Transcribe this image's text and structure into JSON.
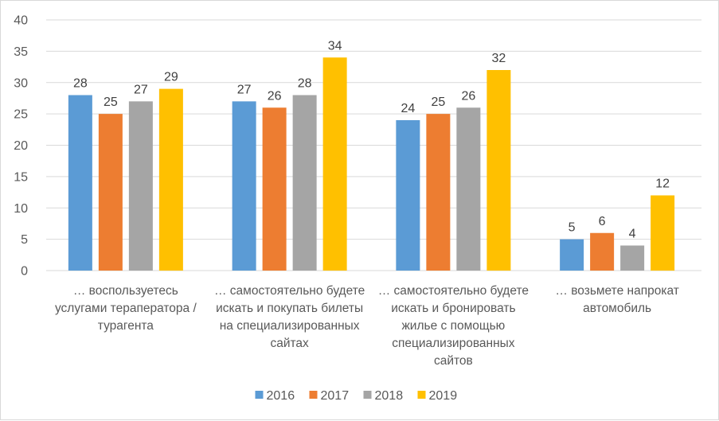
{
  "chart_data": {
    "type": "bar",
    "title": "",
    "xlabel": "",
    "ylabel": "",
    "ylim": [
      0,
      40
    ],
    "yticks": [
      0,
      5,
      10,
      15,
      20,
      25,
      30,
      35,
      40
    ],
    "grid": true,
    "legend_position": "bottom",
    "categories": [
      [
        "… воспользуетесь",
        "услугами тераператора /",
        "турагента"
      ],
      [
        "… самостоятельно будете",
        "искать и покупать билеты",
        "на специализированных",
        "сайтах"
      ],
      [
        "… самостоятельно будете",
        "искать и бронировать",
        "жилье с помощью",
        "специализированных",
        "сайтов"
      ],
      [
        "… возьмете напрокат",
        "автомобиль"
      ]
    ],
    "series": [
      {
        "name": "2016",
        "color": "#5b9bd5",
        "values": [
          28,
          27,
          24,
          5
        ]
      },
      {
        "name": "2017",
        "color": "#ed7d31",
        "values": [
          25,
          26,
          25,
          6
        ]
      },
      {
        "name": "2018",
        "color": "#a5a5a5",
        "values": [
          27,
          28,
          26,
          4
        ]
      },
      {
        "name": "2019",
        "color": "#ffc000",
        "values": [
          29,
          34,
          32,
          12
        ]
      }
    ]
  }
}
